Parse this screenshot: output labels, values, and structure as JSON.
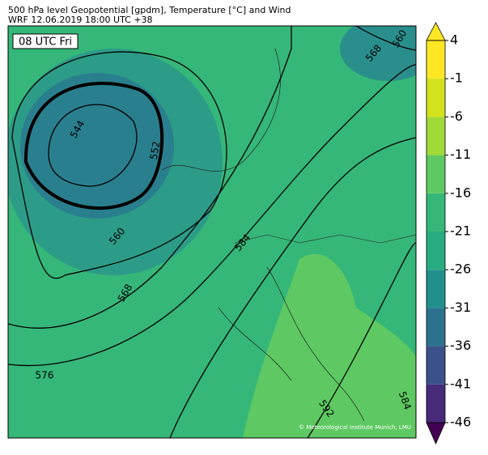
{
  "header": {
    "title": "500 hPa level Geopotential [gpdm], Temperature [°C] and Wind",
    "subtitle": "WRF 12.06.2019 18:00 UTC +38"
  },
  "map": {
    "time_label": "08 UTC Fri",
    "credit": "© Meteorological Institute Munich, LMU",
    "contour_labels": [
      560,
      568,
      544,
      552,
      560,
      568,
      584,
      576,
      592,
      584
    ]
  },
  "colorbar": {
    "ticks": [
      4,
      -1,
      -6,
      -11,
      -16,
      -21,
      -26,
      -31,
      -36,
      -41,
      -46
    ],
    "colors": [
      "#440154",
      "#472a7a",
      "#3b518b",
      "#2c718e",
      "#21908d",
      "#27ad81",
      "#35b779",
      "#5ec962",
      "#a0da39",
      "#d2e21b",
      "#fde725",
      "#fde725"
    ]
  }
}
